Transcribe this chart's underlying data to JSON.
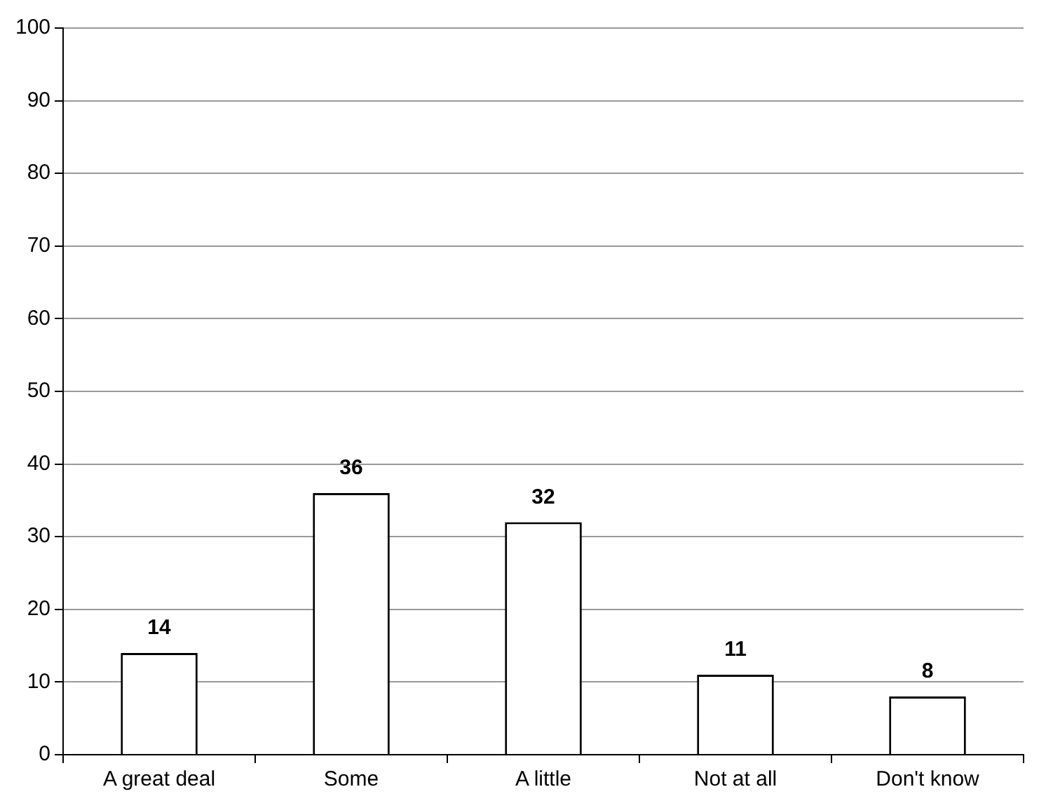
{
  "chart_data": {
    "type": "bar",
    "categories": [
      "A great deal",
      "Some",
      "A little",
      "Not at all",
      "Don't know"
    ],
    "values": [
      14,
      36,
      32,
      11,
      8
    ],
    "color": "#ffffff",
    "ylim": [
      0,
      100
    ],
    "yticks": [
      0,
      10,
      20,
      30,
      40,
      50,
      60,
      70,
      80,
      90,
      100
    ],
    "grid": "y",
    "data_labels": true,
    "legend": false
  }
}
